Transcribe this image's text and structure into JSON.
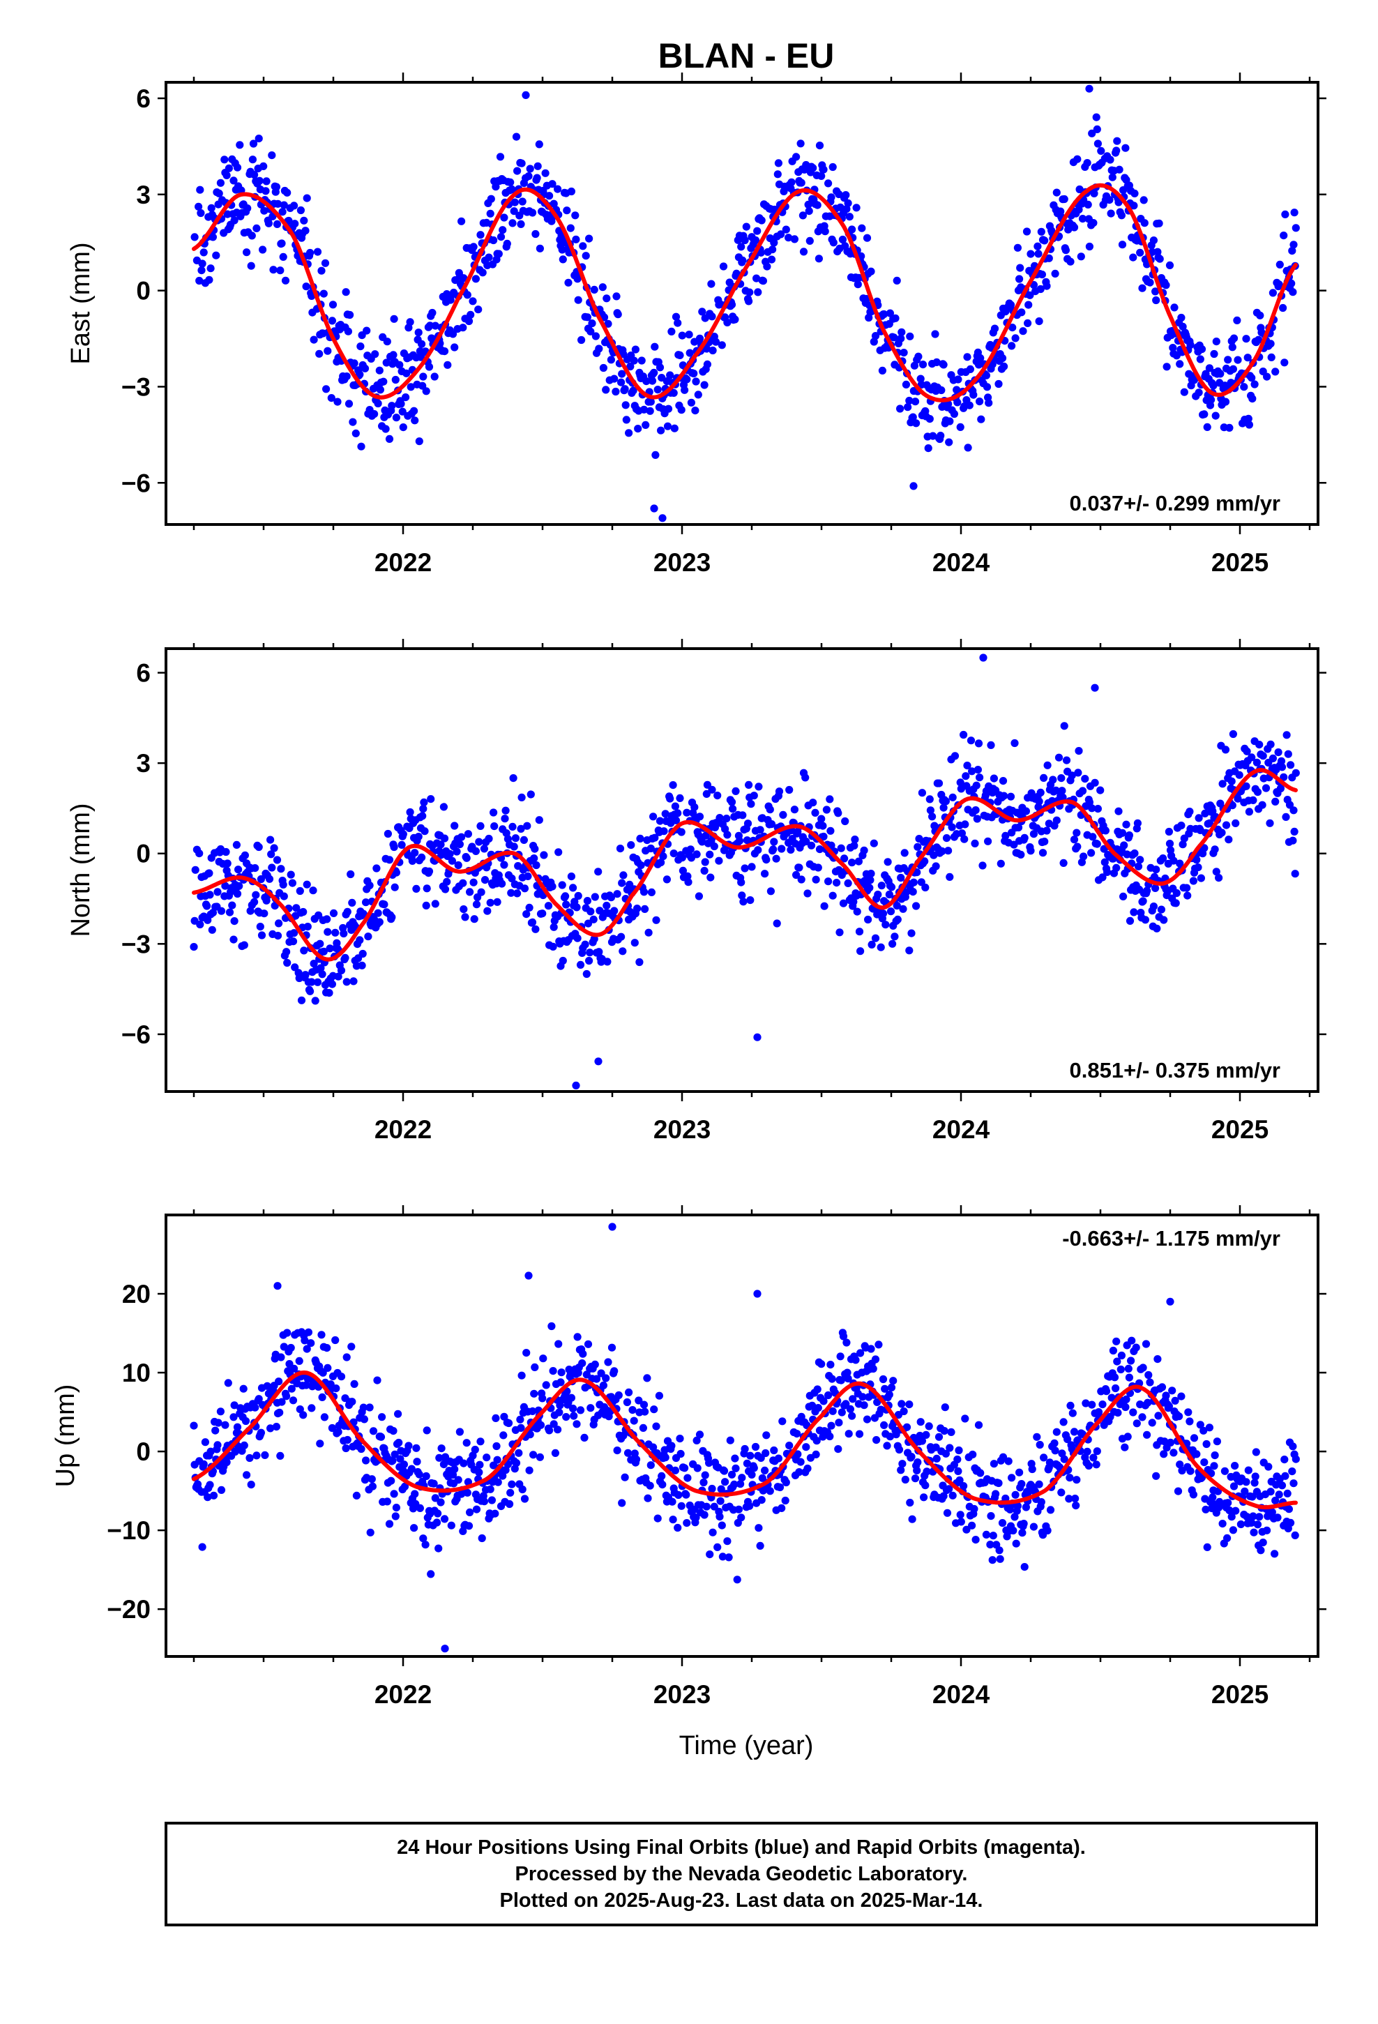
{
  "figure": {
    "title": "BLAN - EU",
    "xlabel": "Time (year)",
    "footer": [
      "24 Hour Positions Using Final Orbits (blue) and Rapid Orbits (magenta).",
      "Processed by the Nevada Geodetic Laboratory.",
      "Plotted on 2025-Aug-23. Last data on 2025-Mar-14."
    ],
    "colors": {
      "points": "#0000ff",
      "fit": "#ff0000",
      "frame": "#000000"
    }
  },
  "chart_data": [
    {
      "type": "scatter",
      "name": "east",
      "ylabel": "East (mm)",
      "rate_label": "0.037+/- 0.299 mm/yr",
      "rate_position": "bottom-right",
      "xlim": [
        2021.15,
        2025.28
      ],
      "ylim": [
        -7.3,
        6.5
      ],
      "yticks": [
        -6,
        -3,
        0,
        3,
        6
      ],
      "ytick_labels": [
        "−6",
        "−3",
        "0",
        "3",
        "6"
      ],
      "xticks": [
        2022,
        2023,
        2024,
        2025
      ],
      "xtick_labels": [
        "2022",
        "2023",
        "2024",
        "2025"
      ],
      "x_start": 2021.25,
      "x_end": 2025.2,
      "fit": {
        "x": [
          2021.25,
          2021.42,
          2021.6,
          2021.75,
          2021.9,
          2022.05,
          2022.2,
          2022.4,
          2022.55,
          2022.7,
          2022.88,
          2023.05,
          2023.25,
          2023.42,
          2023.58,
          2023.72,
          2023.88,
          2024.05,
          2024.25,
          2024.45,
          2024.6,
          2024.75,
          2024.9,
          2025.05,
          2025.2
        ],
        "y": [
          1.3,
          3.0,
          1.8,
          -1.5,
          -3.3,
          -2.5,
          -0.2,
          3.0,
          2.3,
          -0.8,
          -3.3,
          -2.0,
          1.0,
          3.1,
          2.0,
          -1.2,
          -3.3,
          -2.8,
          0.3,
          3.1,
          2.6,
          -0.8,
          -3.2,
          -2.2,
          0.8
        ]
      },
      "scatter_sd": 0.8,
      "outliers": {
        "x": [
          2022.9,
          2022.93,
          2022.44,
          2023.83,
          2024.46
        ],
        "y": [
          -6.8,
          -7.1,
          6.1,
          -6.1,
          6.3
        ]
      }
    },
    {
      "type": "scatter",
      "name": "north",
      "ylabel": "North (mm)",
      "rate_label": "0.851+/- 0.375 mm/yr",
      "rate_position": "bottom-right",
      "xlim": [
        2021.15,
        2025.28
      ],
      "ylim": [
        -7.9,
        6.8
      ],
      "yticks": [
        -6,
        -3,
        0,
        3,
        6
      ],
      "ytick_labels": [
        "−6",
        "−3",
        "0",
        "3",
        "6"
      ],
      "xticks": [
        2022,
        2023,
        2024,
        2025
      ],
      "xtick_labels": [
        "2022",
        "2023",
        "2024",
        "2025"
      ],
      "x_start": 2021.25,
      "x_end": 2025.2,
      "fit": {
        "x": [
          2021.25,
          2021.42,
          2021.55,
          2021.72,
          2021.85,
          2022.02,
          2022.2,
          2022.4,
          2022.55,
          2022.7,
          2022.82,
          2023.0,
          2023.2,
          2023.42,
          2023.58,
          2023.72,
          2023.85,
          2024.02,
          2024.2,
          2024.4,
          2024.55,
          2024.72,
          2024.85,
          2025.05,
          2025.2
        ],
        "y": [
          -1.3,
          -0.8,
          -1.6,
          -3.5,
          -2.4,
          0.2,
          -0.6,
          0.0,
          -1.7,
          -2.7,
          -1.4,
          1.0,
          0.2,
          0.9,
          -0.4,
          -1.8,
          -0.2,
          1.8,
          1.1,
          1.7,
          0.0,
          -1.0,
          0.2,
          2.7,
          2.1
        ]
      },
      "scatter_sd": 0.9,
      "outliers": {
        "x": [
          2024.08,
          2024.48,
          2023.27,
          2022.62,
          2022.7
        ],
        "y": [
          6.5,
          5.5,
          -6.1,
          -7.7,
          -6.9
        ]
      }
    },
    {
      "type": "scatter",
      "name": "up",
      "ylabel": "Up (mm)",
      "rate_label": "-0.663+/- 1.175 mm/yr",
      "rate_position": "top-right",
      "xlim": [
        2021.15,
        2025.28
      ],
      "ylim": [
        -26,
        30
      ],
      "yticks": [
        -20,
        -10,
        0,
        10,
        20
      ],
      "ytick_labels": [
        "−20",
        "−10",
        "0",
        "10",
        "20"
      ],
      "xticks": [
        2022,
        2023,
        2024,
        2025
      ],
      "xtick_labels": [
        "2022",
        "2023",
        "2024",
        "2025"
      ],
      "x_start": 2021.25,
      "x_end": 2025.2,
      "fit": {
        "x": [
          2021.25,
          2021.45,
          2021.65,
          2021.85,
          2022.05,
          2022.3,
          2022.5,
          2022.65,
          2022.85,
          2023.05,
          2023.3,
          2023.5,
          2023.65,
          2023.85,
          2024.05,
          2024.3,
          2024.5,
          2024.65,
          2024.85,
          2025.05,
          2025.2
        ],
        "y": [
          -3.5,
          3.0,
          10.0,
          1.5,
          -4.5,
          -3.5,
          5.0,
          9.0,
          1.0,
          -5.0,
          -4.0,
          4.5,
          8.5,
          0.0,
          -6.0,
          -5.0,
          4.0,
          8.0,
          -2.0,
          -6.8,
          -6.5
        ]
      },
      "scatter_sd": 3.4,
      "outliers": {
        "x": [
          2022.75,
          2022.45,
          2022.15,
          2021.55,
          2023.27,
          2024.75
        ],
        "y": [
          28.5,
          22.3,
          -25.0,
          21.0,
          20.0,
          19.0
        ]
      }
    }
  ]
}
